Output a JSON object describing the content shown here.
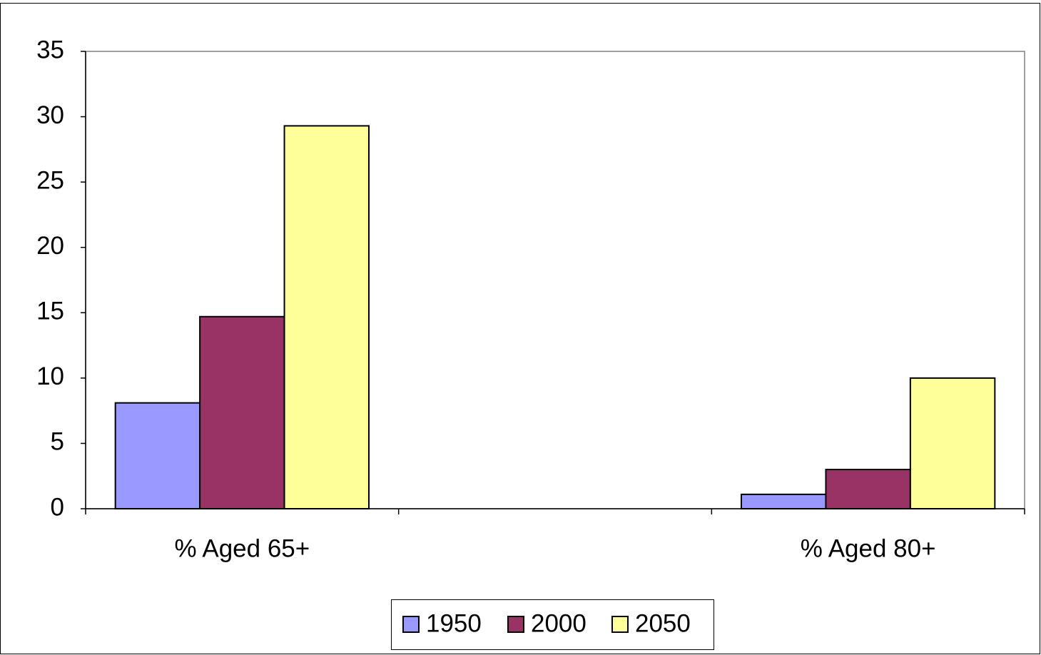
{
  "chart_data": {
    "type": "bar",
    "categories": [
      "% Aged 65+",
      null,
      "% Aged 80+"
    ],
    "series": [
      {
        "name": "1950",
        "color": "#9999ff",
        "values": [
          8.1,
          null,
          1.1
        ]
      },
      {
        "name": "2000",
        "color": "#993366",
        "values": [
          14.7,
          null,
          3.0
        ]
      },
      {
        "name": "2050",
        "color": "#ffff99",
        "values": [
          29.3,
          null,
          10.0
        ]
      }
    ],
    "ylim": [
      0,
      35
    ],
    "yticks": [
      0,
      5,
      10,
      15,
      20,
      25,
      30,
      35
    ],
    "grid": false,
    "legend": "bottom"
  }
}
